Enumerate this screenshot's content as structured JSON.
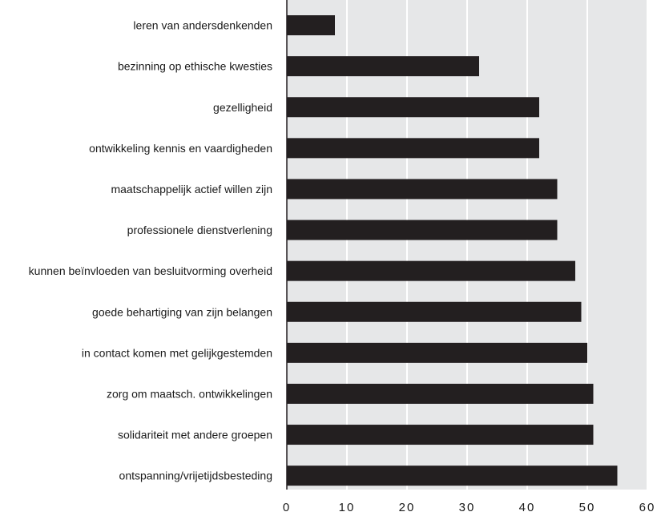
{
  "chart_data": {
    "type": "bar",
    "orientation": "horizontal",
    "categories": [
      "leren van andersdenkenden",
      "bezinning op ethische kwesties",
      "gezelligheid",
      "ontwikkeling kennis en vaardigheden",
      "maatschappelijk actief willen zijn",
      "professionele dienstverlening",
      "kunnen beïnvloeden van besluitvorming overheid",
      "goede behartiging van zijn belangen",
      "in contact komen met gelijkgestemden",
      "zorg om maatsch. ontwikkelingen",
      "solidariteit met andere groepen",
      "ontspanning/vrijetijdsbesteding"
    ],
    "values": [
      8,
      32,
      42,
      42,
      45,
      45,
      48,
      49,
      50,
      51,
      51,
      55
    ],
    "xlim": [
      0,
      60
    ],
    "xticks": [
      "0",
      "10",
      "20",
      "30",
      "40",
      "50",
      "60"
    ],
    "grid": "vertical",
    "colors": {
      "bar": "#231f20",
      "plot_background": "#e6e7e8",
      "gridline": "#ffffff",
      "axis": "#231f20"
    }
  }
}
